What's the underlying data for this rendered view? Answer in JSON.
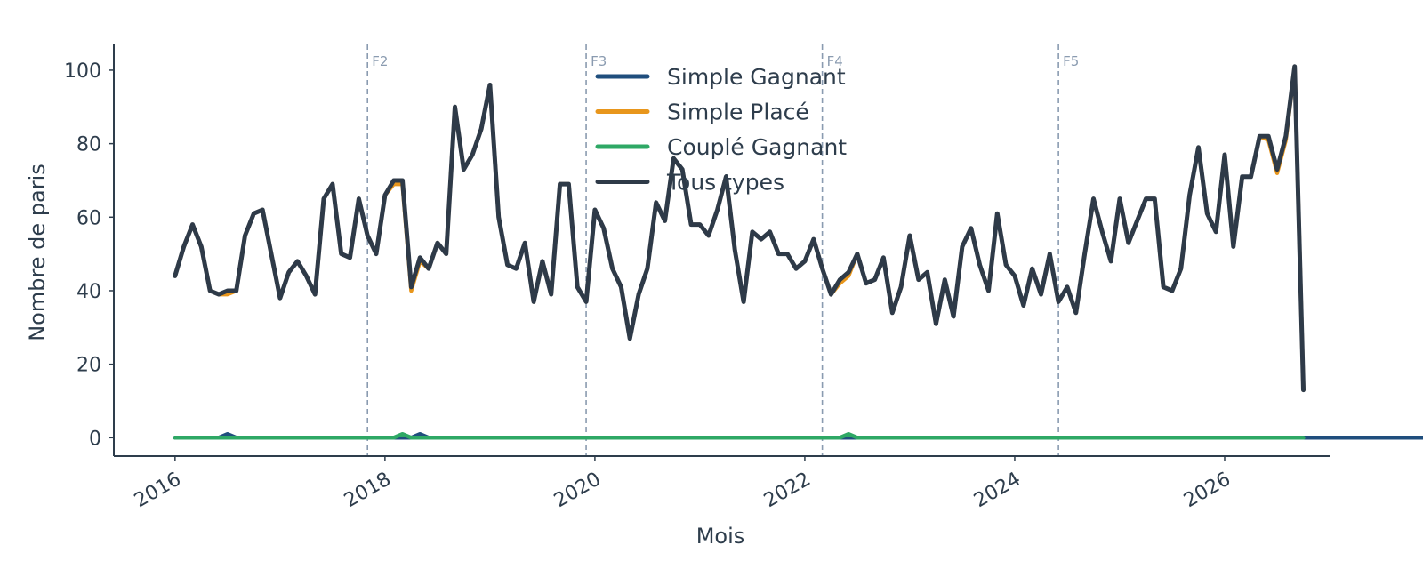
{
  "chart_data": {
    "type": "line",
    "title": "",
    "xlabel": "Mois",
    "ylabel": "Nombre de paris",
    "x_start": "2016-01",
    "x_ticks": [
      "2016",
      "2018",
      "2020",
      "2022",
      "2024",
      "2026"
    ],
    "y_ticks": [
      0,
      20,
      40,
      60,
      80,
      100
    ],
    "xlim": [
      "2015-06",
      "2027-01"
    ],
    "ylim": [
      -5,
      107
    ],
    "grid": false,
    "legend_position": "top-center",
    "phases": [
      {
        "label": "F2",
        "date": "2017-11"
      },
      {
        "label": "F3",
        "date": "2019-12"
      },
      {
        "label": "F4",
        "date": "2022-03"
      },
      {
        "label": "F5",
        "date": "2024-06"
      }
    ],
    "series": [
      {
        "name": "Simple Gagnant",
        "color": "#1f4e7d",
        "values": [
          0,
          0,
          0,
          0,
          0,
          0,
          1,
          0,
          0,
          0,
          0,
          0,
          0,
          0,
          0,
          0,
          0,
          0,
          0,
          0,
          0,
          0,
          0,
          0,
          0,
          0,
          0,
          0,
          1,
          0,
          0,
          0,
          0,
          0,
          0,
          0,
          0,
          0,
          0,
          0,
          0,
          0,
          0,
          0,
          0,
          0,
          0,
          0,
          0,
          0,
          0,
          0,
          0,
          0,
          0,
          0,
          0,
          0,
          0,
          0,
          0,
          0,
          0,
          0,
          0,
          0,
          0,
          0,
          0,
          0,
          0,
          0,
          0,
          0,
          0,
          0,
          0,
          0,
          0,
          0,
          0,
          0,
          0,
          0,
          0,
          0,
          0,
          0,
          0,
          0,
          0,
          0,
          0,
          0,
          0,
          0,
          0,
          0,
          0,
          0,
          0,
          0,
          0,
          0,
          0,
          0,
          0,
          0,
          0,
          0,
          0,
          0,
          0,
          0,
          0,
          0,
          0,
          0,
          0,
          0,
          0,
          0,
          0,
          0,
          0,
          0,
          0,
          0,
          0,
          0,
          0,
          0,
          0,
          0,
          0,
          0,
          0,
          0,
          0,
          0,
          0,
          0,
          0,
          0,
          0,
          0,
          0,
          0,
          0,
          0,
          0,
          0,
          0,
          0,
          0,
          0,
          0,
          0,
          0,
          0,
          0,
          0,
          0,
          0,
          0,
          0,
          0,
          0,
          0,
          0,
          0,
          0,
          0,
          0,
          0,
          0,
          0,
          0,
          0,
          0,
          1,
          1,
          1,
          0,
          0
        ]
      },
      {
        "name": "Simple Placé",
        "color": "#e8961c",
        "values": [
          44,
          52,
          58,
          52,
          40,
          39,
          39,
          40,
          55,
          61,
          62,
          50,
          38,
          45,
          48,
          44,
          39,
          65,
          69,
          50,
          49,
          65,
          55,
          50,
          66,
          69,
          69,
          40,
          48,
          46,
          53,
          50,
          90,
          73,
          77,
          84,
          96,
          60,
          47,
          46,
          53,
          37,
          48,
          39,
          69,
          69,
          41,
          37,
          62,
          57,
          46,
          41,
          27,
          39,
          46,
          64,
          59,
          76,
          73,
          58,
          58,
          55,
          62,
          71,
          51,
          37,
          56,
          54,
          56,
          50,
          50,
          46,
          48,
          54,
          46,
          39,
          42,
          44,
          50,
          42,
          43,
          49,
          34,
          41,
          55,
          43,
          45,
          31,
          43,
          33,
          52,
          57,
          47,
          40,
          61,
          47,
          44,
          36,
          46,
          39,
          50,
          37,
          41,
          34,
          50,
          65,
          56,
          48,
          65,
          53,
          59,
          65,
          65,
          41,
          40,
          46,
          66,
          79,
          61,
          56,
          77,
          52,
          71,
          71,
          82,
          81,
          72,
          81,
          101,
          13
        ]
      },
      {
        "name": "Couplé Gagnant",
        "color": "#2ea865",
        "values": [
          0,
          0,
          0,
          0,
          0,
          0,
          0,
          0,
          0,
          0,
          0,
          0,
          0,
          0,
          0,
          0,
          0,
          0,
          0,
          0,
          0,
          0,
          0,
          0,
          0,
          0,
          1,
          0,
          0,
          0,
          0,
          0,
          0,
          0,
          0,
          0,
          0,
          0,
          0,
          0,
          0,
          0,
          0,
          0,
          0,
          0,
          0,
          0,
          0,
          0,
          0,
          0,
          0,
          0,
          0,
          0,
          0,
          0,
          0,
          0,
          0,
          0,
          0,
          0,
          0,
          0,
          0,
          0,
          0,
          0,
          0,
          0,
          0,
          0,
          0,
          0,
          0,
          1,
          0,
          0,
          0,
          0,
          0,
          0,
          0,
          0,
          0,
          0,
          0,
          0,
          0,
          0,
          0,
          0,
          0,
          0,
          0,
          0,
          0,
          0,
          0,
          0,
          0,
          0,
          0,
          0,
          0,
          0,
          0,
          0,
          0,
          0,
          0,
          0,
          0,
          0,
          0,
          0,
          0,
          0,
          0,
          0,
          0,
          0,
          0,
          0,
          0,
          0,
          0,
          0
        ]
      },
      {
        "name": "Tous types",
        "color": "#2e3a48",
        "values": [
          44,
          52,
          58,
          52,
          40,
          39,
          40,
          40,
          55,
          61,
          62,
          50,
          38,
          45,
          48,
          44,
          39,
          65,
          69,
          50,
          49,
          65,
          55,
          50,
          66,
          70,
          70,
          41,
          49,
          46,
          53,
          50,
          90,
          73,
          77,
          84,
          96,
          60,
          47,
          46,
          53,
          37,
          48,
          39,
          69,
          69,
          41,
          37,
          62,
          57,
          46,
          41,
          27,
          39,
          46,
          64,
          59,
          76,
          73,
          58,
          58,
          55,
          62,
          71,
          51,
          37,
          56,
          54,
          56,
          50,
          50,
          46,
          48,
          54,
          46,
          39,
          43,
          45,
          50,
          42,
          43,
          49,
          34,
          41,
          55,
          43,
          45,
          31,
          43,
          33,
          52,
          57,
          47,
          40,
          61,
          47,
          44,
          36,
          46,
          39,
          50,
          37,
          41,
          34,
          50,
          65,
          56,
          48,
          65,
          53,
          59,
          65,
          65,
          41,
          40,
          46,
          66,
          79,
          61,
          56,
          77,
          52,
          71,
          71,
          82,
          82,
          73,
          82,
          101,
          13
        ]
      }
    ]
  }
}
